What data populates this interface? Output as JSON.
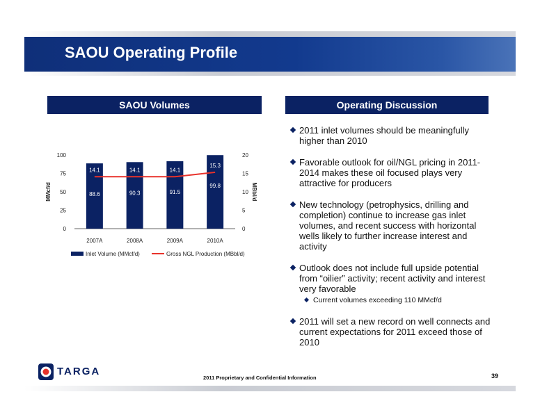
{
  "header": {
    "title": "SAOU Operating Profile"
  },
  "left_heading": "SAOU Volumes",
  "right_heading": "Operating Discussion",
  "bullets": [
    {
      "text": "2011 inlet volumes should be meaningfully higher than 2010"
    },
    {
      "text": "Favorable outlook for oil/NGL pricing in 2011-2014 makes these oil focused plays very attractive for producers"
    },
    {
      "text": "New technology (petrophysics, drilling and completion) continue to increase gas inlet volumes, and recent success with horizontal wells likely to further increase interest and activity"
    },
    {
      "text": "Outlook does not include full upside potential from “oilier” activity; recent activity and interest very favorable",
      "sub": [
        "Current volumes exceeding 110 MMcf/d"
      ]
    },
    {
      "text": "2011 will set a new record on well connects and current expectations for 2011 exceed those of 2010"
    }
  ],
  "logo": {
    "text": "TARGA"
  },
  "footer": {
    "text": "2011 Proprietary and Confidential Information"
  },
  "page_number": "39",
  "colors": {
    "banner": "#123a8e",
    "heading_bg": "#0b2263",
    "bar": "#0b2263",
    "line": "#e8322b"
  },
  "chart_data": {
    "type": "bar",
    "categories": [
      "2007A",
      "2008A",
      "2009A",
      "2010A"
    ],
    "series": [
      {
        "name": "Inlet Volume (MMcf/d)",
        "type": "bar",
        "axis": "left",
        "values": [
          88.6,
          90.3,
          91.5,
          99.8
        ]
      },
      {
        "name": "Gross NGL Production (MBbl/d)",
        "type": "line",
        "axis": "right",
        "values": [
          14.1,
          14.1,
          14.1,
          15.3
        ]
      }
    ],
    "ylabel": "MMcf/d",
    "y2label": "MBbl/d",
    "ylim": [
      0,
      100
    ],
    "y2lim": [
      0,
      20
    ],
    "yticks": [
      0,
      25,
      50,
      75,
      100
    ],
    "y2ticks": [
      0,
      5,
      10,
      15,
      20
    ],
    "grid": false,
    "legend": "bottom"
  }
}
